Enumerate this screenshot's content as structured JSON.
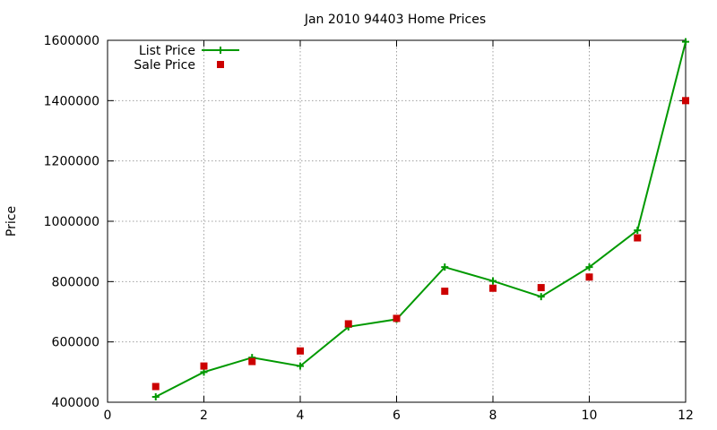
{
  "chart_data": {
    "type": "line",
    "title": "Jan 2010 94403 Home Prices",
    "xlabel": "",
    "ylabel": "Price",
    "xlim": [
      0,
      12
    ],
    "ylim": [
      400000,
      1600000
    ],
    "x_ticks": [
      0,
      2,
      4,
      6,
      8,
      10,
      12
    ],
    "y_ticks": [
      400000,
      600000,
      800000,
      1000000,
      1200000,
      1400000,
      1600000
    ],
    "grid": true,
    "legend_position": "top-left",
    "series": [
      {
        "name": "List Price",
        "style": "line-with-plus-markers",
        "color": "#009900",
        "x": [
          1,
          2,
          3,
          4,
          5,
          6,
          7,
          8,
          9,
          10,
          11,
          12
        ],
        "y": [
          418000,
          500000,
          548000,
          520000,
          650000,
          675000,
          848000,
          802000,
          750000,
          848000,
          970000,
          1595000
        ]
      },
      {
        "name": "Sale Price",
        "style": "square-markers",
        "color": "#cc0000",
        "x": [
          1,
          2,
          3,
          4,
          5,
          6,
          7,
          8,
          9,
          10,
          11,
          12
        ],
        "y": [
          452000,
          520000,
          535000,
          570000,
          660000,
          678000,
          768000,
          778000,
          780000,
          815000,
          945000,
          1400000
        ]
      }
    ]
  }
}
